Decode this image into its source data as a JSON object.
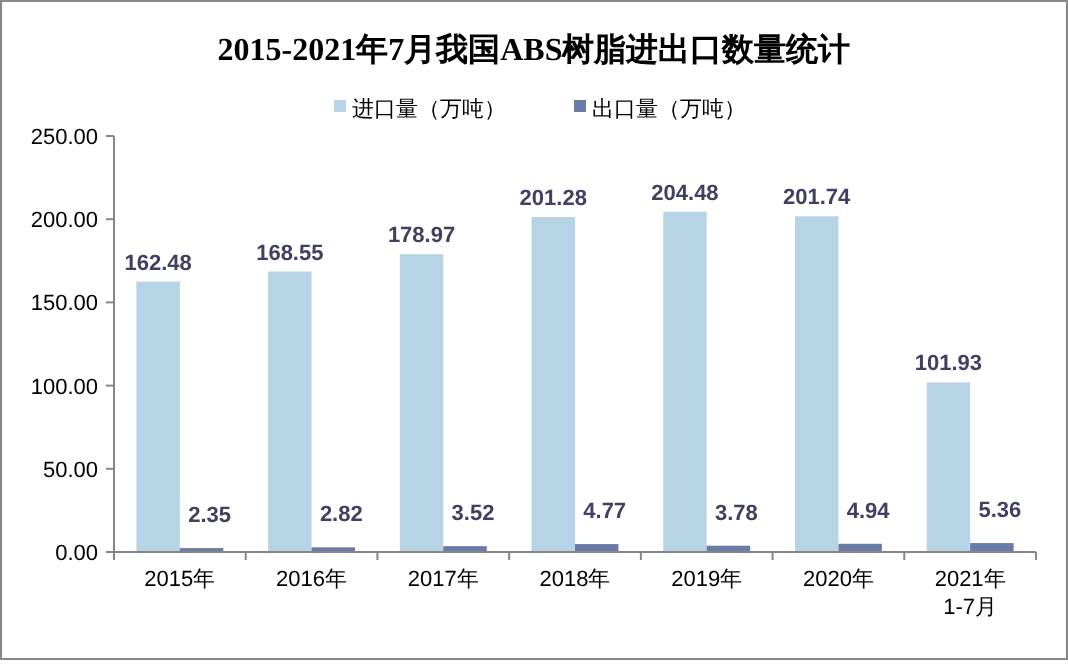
{
  "chart_data": {
    "type": "bar",
    "title": "2015-2021年7月我国ABS树脂进出口数量统计",
    "categories": [
      "2015年",
      "2016年",
      "2017年",
      "2018年",
      "2019年",
      "2020年",
      "2021年\n1-7月"
    ],
    "series": [
      {
        "name": "进口量（万吨）",
        "color": "#b7d3e6",
        "values": [
          162.48,
          168.55,
          178.97,
          201.28,
          204.48,
          201.74,
          101.93
        ]
      },
      {
        "name": "出口量（万吨）",
        "color": "#6b7ba8",
        "values": [
          2.35,
          2.82,
          3.52,
          4.77,
          3.78,
          4.94,
          5.36
        ]
      }
    ],
    "ylim": [
      0,
      250
    ],
    "yticks": [
      {
        "value": 0,
        "label": "0.00"
      },
      {
        "value": 50,
        "label": "50.00"
      },
      {
        "value": 100,
        "label": "100.00"
      },
      {
        "value": 150,
        "label": "150.00"
      },
      {
        "value": 200,
        "label": "200.00"
      },
      {
        "value": 250,
        "label": "250.00"
      }
    ],
    "data_labels": true,
    "legend": "top",
    "grid": false
  }
}
